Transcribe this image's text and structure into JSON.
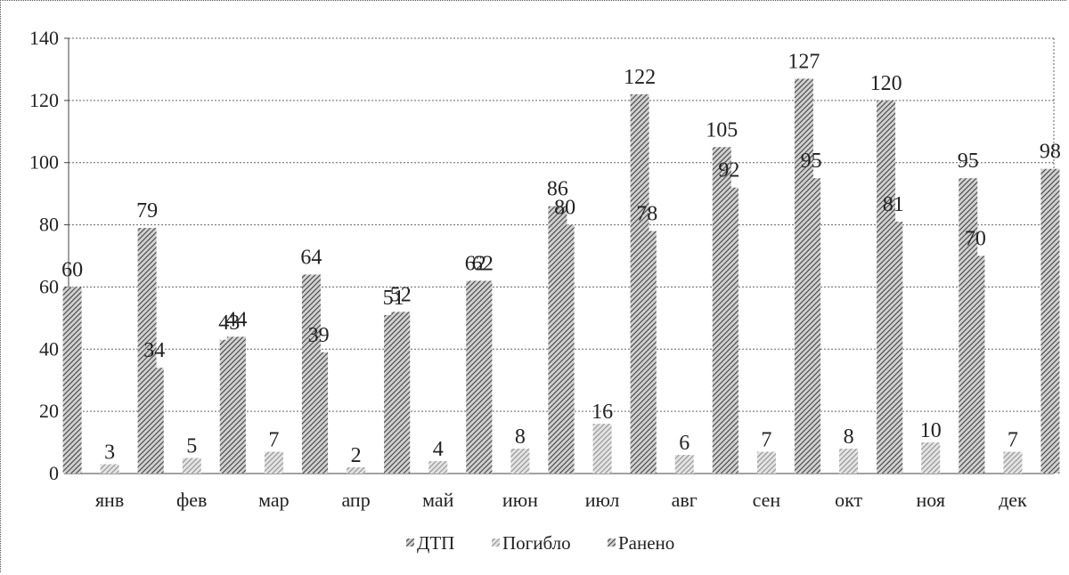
{
  "chart_data": {
    "type": "bar",
    "categories": [
      "янв",
      "фев",
      "мар",
      "апр",
      "май",
      "июн",
      "июл",
      "авг",
      "сен",
      "окт",
      "ноя",
      "дек"
    ],
    "series": [
      {
        "name": "ДТП",
        "values": [
          60,
          34,
          44,
          39,
          52,
          62,
          80,
          78,
          92,
          95,
          81,
          70
        ]
      },
      {
        "name": "Погибло",
        "values": [
          3,
          5,
          7,
          2,
          4,
          8,
          16,
          6,
          7,
          8,
          10,
          7
        ]
      },
      {
        "name": "Ранено",
        "values": [
          79,
          43,
          64,
          51,
          62,
          86,
          122,
          105,
          127,
          120,
          95,
          98
        ]
      }
    ],
    "yticks": [
      "0",
      "20",
      "40",
      "60",
      "80",
      "100",
      "120",
      "140"
    ],
    "ylim": [
      0,
      140
    ],
    "grid": true,
    "legend_position": "bottom"
  }
}
